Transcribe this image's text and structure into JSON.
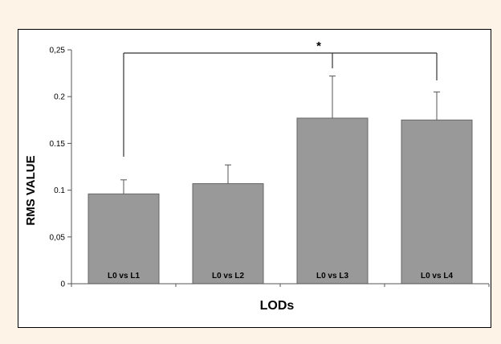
{
  "chart_data": {
    "type": "bar",
    "categories": [
      "L0 vs L1",
      "L0 vs L2",
      "L0 vs L3",
      "L0 vs L4"
    ],
    "values": [
      0.096,
      0.107,
      0.177,
      0.175
    ],
    "errors": [
      0.015,
      0.02,
      0.045,
      0.03
    ],
    "title": "",
    "xlabel": "LODs",
    "ylabel": "RMS VALUE",
    "ylim": [
      0,
      0.25
    ],
    "yticks": [
      0,
      0.05,
      0.1,
      0.15,
      0.2,
      0.25
    ],
    "ytick_labels": [
      "0",
      "0,05",
      "0.1",
      "0.15",
      "0.2",
      "0,25"
    ],
    "grid": false,
    "significance": {
      "label": "*",
      "from_bar": 0,
      "to_bars": [
        2,
        3
      ]
    }
  },
  "colors": {
    "bar_fill": "#999999",
    "bar_stroke": "#666666",
    "axis": "#555555",
    "text": "#000000",
    "background": "#fdf3e7",
    "panel": "#ffffff"
  }
}
